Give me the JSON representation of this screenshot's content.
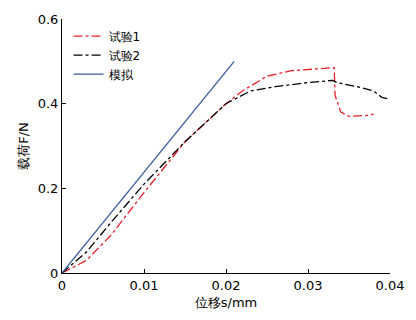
{
  "chart_data": {
    "type": "line",
    "x_label": "位移s/mm",
    "y_label": "载荷F/N",
    "xlim": [
      0,
      0.04
    ],
    "xticks": [
      0,
      0.01,
      0.02,
      0.03,
      0.04
    ],
    "ylim": [
      0,
      0.6
    ],
    "yticks": [
      0,
      0.2,
      0.4,
      0.6
    ],
    "grid": false,
    "legend": "top-left",
    "series": [
      {
        "name": "试验1",
        "color": "#e8202a",
        "line_style": "dashdot",
        "x": [
          0,
          0.003,
          0.006,
          0.01,
          0.015,
          0.02,
          0.022,
          0.025,
          0.028,
          0.031,
          0.0332,
          0.0333,
          0.034,
          0.035,
          0.037,
          0.038
        ],
        "values": [
          0,
          0.03,
          0.09,
          0.19,
          0.31,
          0.4,
          0.43,
          0.465,
          0.478,
          0.483,
          0.485,
          0.42,
          0.38,
          0.37,
          0.372,
          0.375
        ]
      },
      {
        "name": "试验2",
        "color": "#000000",
        "line_style": "dashdot",
        "x": [
          0,
          0.003,
          0.006,
          0.01,
          0.015,
          0.02,
          0.023,
          0.026,
          0.03,
          0.033,
          0.0335,
          0.036,
          0.038,
          0.039,
          0.04
        ],
        "values": [
          0,
          0.05,
          0.12,
          0.21,
          0.31,
          0.4,
          0.43,
          0.44,
          0.45,
          0.455,
          0.45,
          0.44,
          0.43,
          0.415,
          0.41
        ]
      },
      {
        "name": "模拟",
        "color": "#3a5a9e",
        "line_style": "solid",
        "x": [
          0,
          0.021
        ],
        "values": [
          0,
          0.5
        ]
      }
    ]
  }
}
